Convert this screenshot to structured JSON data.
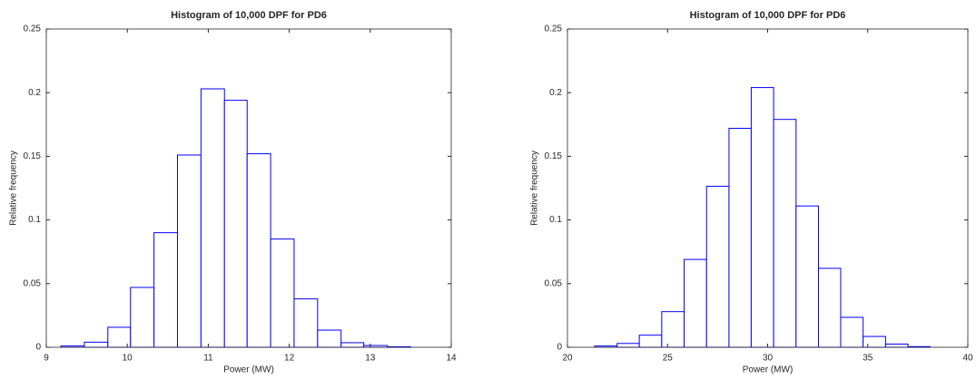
{
  "chart_data": [
    {
      "type": "histogram",
      "title": "Histogram of 10,000 DPF for PD6",
      "xlabel": "Power (MW)",
      "ylabel": "Relative frequency",
      "bins": [
        9.18,
        9.47,
        9.76,
        10.04,
        10.33,
        10.62,
        10.91,
        11.2,
        11.48,
        11.77,
        12.06,
        12.35,
        12.64,
        12.92,
        13.21,
        13.5
      ],
      "counts": [
        0.001,
        0.004,
        0.0157,
        0.047,
        0.09,
        0.151,
        0.203,
        0.194,
        0.152,
        0.085,
        0.038,
        0.0135,
        0.0036,
        0.0014,
        0.0004
      ],
      "color": "#0000ff",
      "xlim": [
        9,
        14
      ],
      "xticks": [
        9,
        10,
        11,
        12,
        13,
        14
      ],
      "ylim": [
        0,
        0.25
      ],
      "yticks": [
        0,
        0.05,
        0.1,
        0.15,
        0.2,
        0.25
      ]
    },
    {
      "type": "histogram",
      "title": "Histogram of 10,000 DPF for PD6",
      "xlabel": "Power (MW)",
      "ylabel": "Relative frequency",
      "bins": [
        21.36,
        22.48,
        23.59,
        24.71,
        25.83,
        26.95,
        28.07,
        29.18,
        30.3,
        31.42,
        32.54,
        33.65,
        34.77,
        35.89,
        37.01,
        38.12
      ],
      "counts": [
        0.001,
        0.003,
        0.0095,
        0.028,
        0.069,
        0.1265,
        0.172,
        0.204,
        0.179,
        0.111,
        0.062,
        0.0235,
        0.0085,
        0.0025,
        0.0005
      ],
      "color": "#0000ff",
      "xlim": [
        20,
        40
      ],
      "xticks": [
        20,
        25,
        30,
        35,
        40
      ],
      "ylim": [
        0,
        0.25
      ],
      "yticks": [
        0,
        0.05,
        0.1,
        0.15,
        0.2,
        0.25
      ]
    }
  ]
}
